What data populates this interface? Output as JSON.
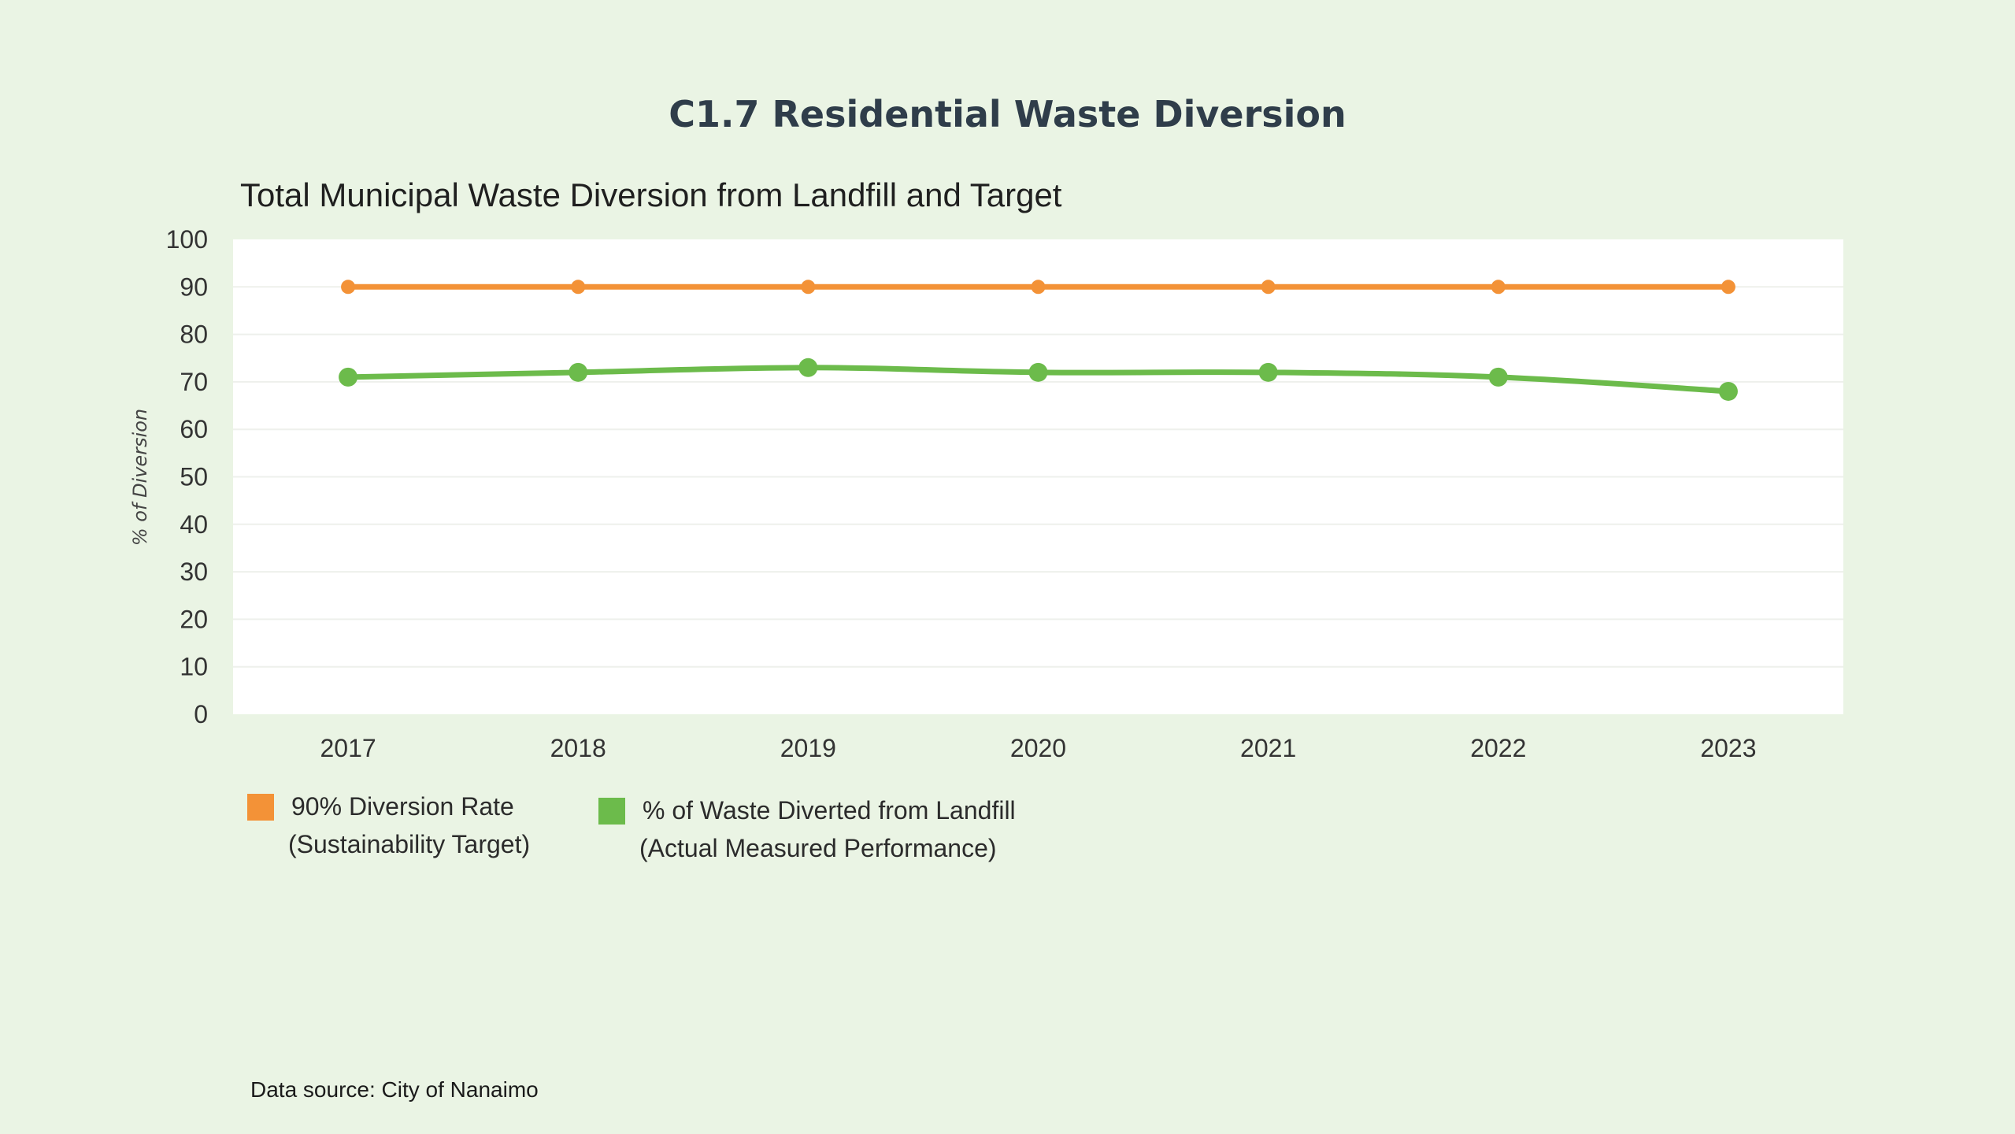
{
  "page": {
    "title": "C1.7 Residential Waste Diversion",
    "footer": "Data source: City of Nanaimo"
  },
  "colors": {
    "background": "#eaf4e4",
    "plot_background": "#ffffff",
    "target_series": "#f39237",
    "actual_series": "#6cbb4b"
  },
  "chart_data": {
    "type": "line",
    "title": "Total Municipal Waste Diversion from Landfill and Target",
    "xlabel": "",
    "ylabel": "% of Diversion",
    "x": [
      "2017",
      "2018",
      "2019",
      "2020",
      "2021",
      "2022",
      "2023"
    ],
    "ylim": [
      0,
      100
    ],
    "yticks": [
      0,
      10,
      20,
      30,
      40,
      50,
      60,
      70,
      80,
      90,
      100
    ],
    "grid": true,
    "legend_position": "bottom-left",
    "series": [
      {
        "name": "90% Diversion Rate (Sustainability Target)",
        "legend_lines": [
          "90% Diversion Rate",
          "(Sustainability Target)"
        ],
        "color": "#f39237",
        "values": [
          90,
          90,
          90,
          90,
          90,
          90,
          90
        ]
      },
      {
        "name": "% of Waste Diverted from Landfill (Actual Measured Performance)",
        "legend_lines": [
          "% of Waste Diverted from Landfill",
          "(Actual Measured Performance)"
        ],
        "color": "#6cbb4b",
        "values": [
          71,
          72,
          73,
          72,
          72,
          71,
          68
        ]
      }
    ]
  }
}
